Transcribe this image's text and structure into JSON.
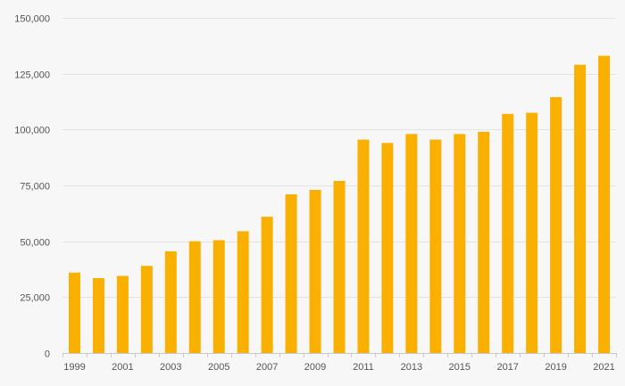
{
  "chart_data": {
    "type": "bar",
    "categories": [
      "1999",
      "2000",
      "2001",
      "2002",
      "2003",
      "2004",
      "2005",
      "2006",
      "2007",
      "2008",
      "2009",
      "2010",
      "2011",
      "2012",
      "2013",
      "2014",
      "2015",
      "2016",
      "2017",
      "2018",
      "2019",
      "2020",
      "2021"
    ],
    "x_tick_labels": [
      "1999",
      "2001",
      "2003",
      "2005",
      "2007",
      "2009",
      "2011",
      "2013",
      "2015",
      "2017",
      "2019",
      "2021"
    ],
    "values": [
      36000,
      33500,
      34500,
      39000,
      45500,
      50000,
      50500,
      54500,
      61000,
      71000,
      73000,
      77000,
      95500,
      94000,
      98000,
      95500,
      98000,
      99000,
      107000,
      107500,
      114500,
      129000,
      133000
    ],
    "ylim": [
      0,
      150000
    ],
    "y_ticks": [
      0,
      25000,
      50000,
      75000,
      100000,
      125000,
      150000
    ],
    "y_tick_labels": [
      "0",
      "25,000",
      "50,000",
      "75,000",
      "100,000",
      "125,000",
      "150,000"
    ],
    "title": "",
    "xlabel": "",
    "ylabel": "",
    "grid": true,
    "legend": "none",
    "bar_color": "#f9b000",
    "background_color": "#f7f7f7"
  }
}
